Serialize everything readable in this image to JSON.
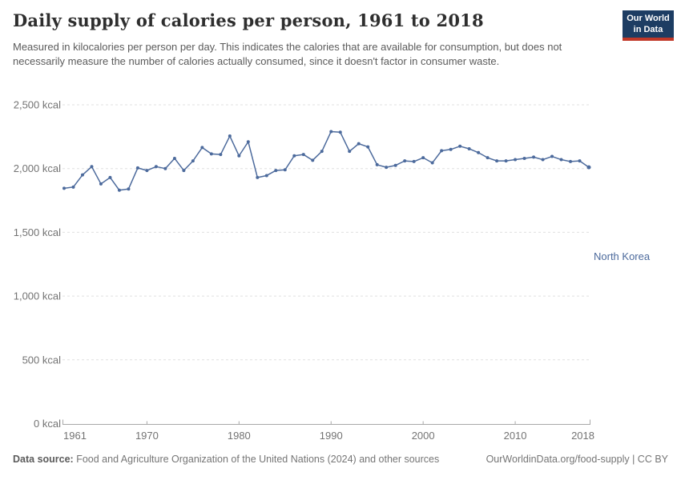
{
  "header": {
    "title": "Daily supply of calories per person, 1961 to 2018",
    "subtitle": "Measured in kilocalories per person per day. This indicates the calories that are available for consumption, but does not necessarily measure the number of calories actually consumed, since it doesn't factor in consumer waste.",
    "logo": {
      "line1": "Our World",
      "line2": "in Data"
    }
  },
  "chart_data": {
    "type": "line",
    "title": "Daily supply of calories per person, 1961 to 2018",
    "unit": "kcal",
    "xlim": [
      1961,
      2018
    ],
    "ylim": [
      0,
      2500
    ],
    "grid": "horizontal-dashed",
    "legend_position": "end-of-line-label",
    "x_ticks": [
      1961,
      1970,
      1980,
      1990,
      2000,
      2010,
      2018
    ],
    "y_ticks": [
      0,
      500,
      1000,
      1500,
      2000,
      2500
    ],
    "y_tick_labels": [
      "0 kcal",
      "500 kcal",
      "1,000 kcal",
      "1,500 kcal",
      "2,000 kcal",
      "2,500 kcal"
    ],
    "series": [
      {
        "name": "North Korea",
        "color": "#4C6A9C",
        "x": [
          1961,
          1962,
          1963,
          1964,
          1965,
          1966,
          1967,
          1968,
          1969,
          1970,
          1971,
          1972,
          1973,
          1974,
          1975,
          1976,
          1977,
          1978,
          1979,
          1980,
          1981,
          1982,
          1983,
          1984,
          1985,
          1986,
          1987,
          1988,
          1989,
          1990,
          1991,
          1992,
          1993,
          1994,
          1995,
          1996,
          1997,
          1998,
          1999,
          2000,
          2001,
          2002,
          2003,
          2004,
          2005,
          2006,
          2007,
          2008,
          2009,
          2010,
          2011,
          2012,
          2013,
          2014,
          2015,
          2016,
          2017,
          2018
        ],
        "values": [
          1845,
          1855,
          1950,
          2015,
          1880,
          1930,
          1830,
          1840,
          2005,
          1985,
          2015,
          2000,
          2080,
          1985,
          2060,
          2165,
          2115,
          2110,
          2255,
          2100,
          2210,
          1930,
          1945,
          1985,
          1990,
          2100,
          2110,
          2065,
          2135,
          2290,
          2285,
          2135,
          2195,
          2170,
          2030,
          2010,
          2025,
          2060,
          2055,
          2085,
          2045,
          2140,
          2150,
          2175,
          2155,
          2125,
          2085,
          2060,
          2060,
          2070,
          2080,
          2090,
          2070,
          2095,
          2070,
          2055,
          2060,
          2010
        ]
      }
    ]
  },
  "footer": {
    "source_label": "Data source:",
    "source_text": " Food and Agriculture Organization of the United Nations (2024) and other sources",
    "link_text": "OurWorldinData.org/food-supply | CC BY"
  },
  "colors": {
    "line": "#4C6A9C",
    "gridline": "#e0e0e0",
    "axis": "#a8a8a8",
    "tick_text": "#737373",
    "logo_bg": "#1D3D63",
    "logo_red": "#C13828"
  }
}
